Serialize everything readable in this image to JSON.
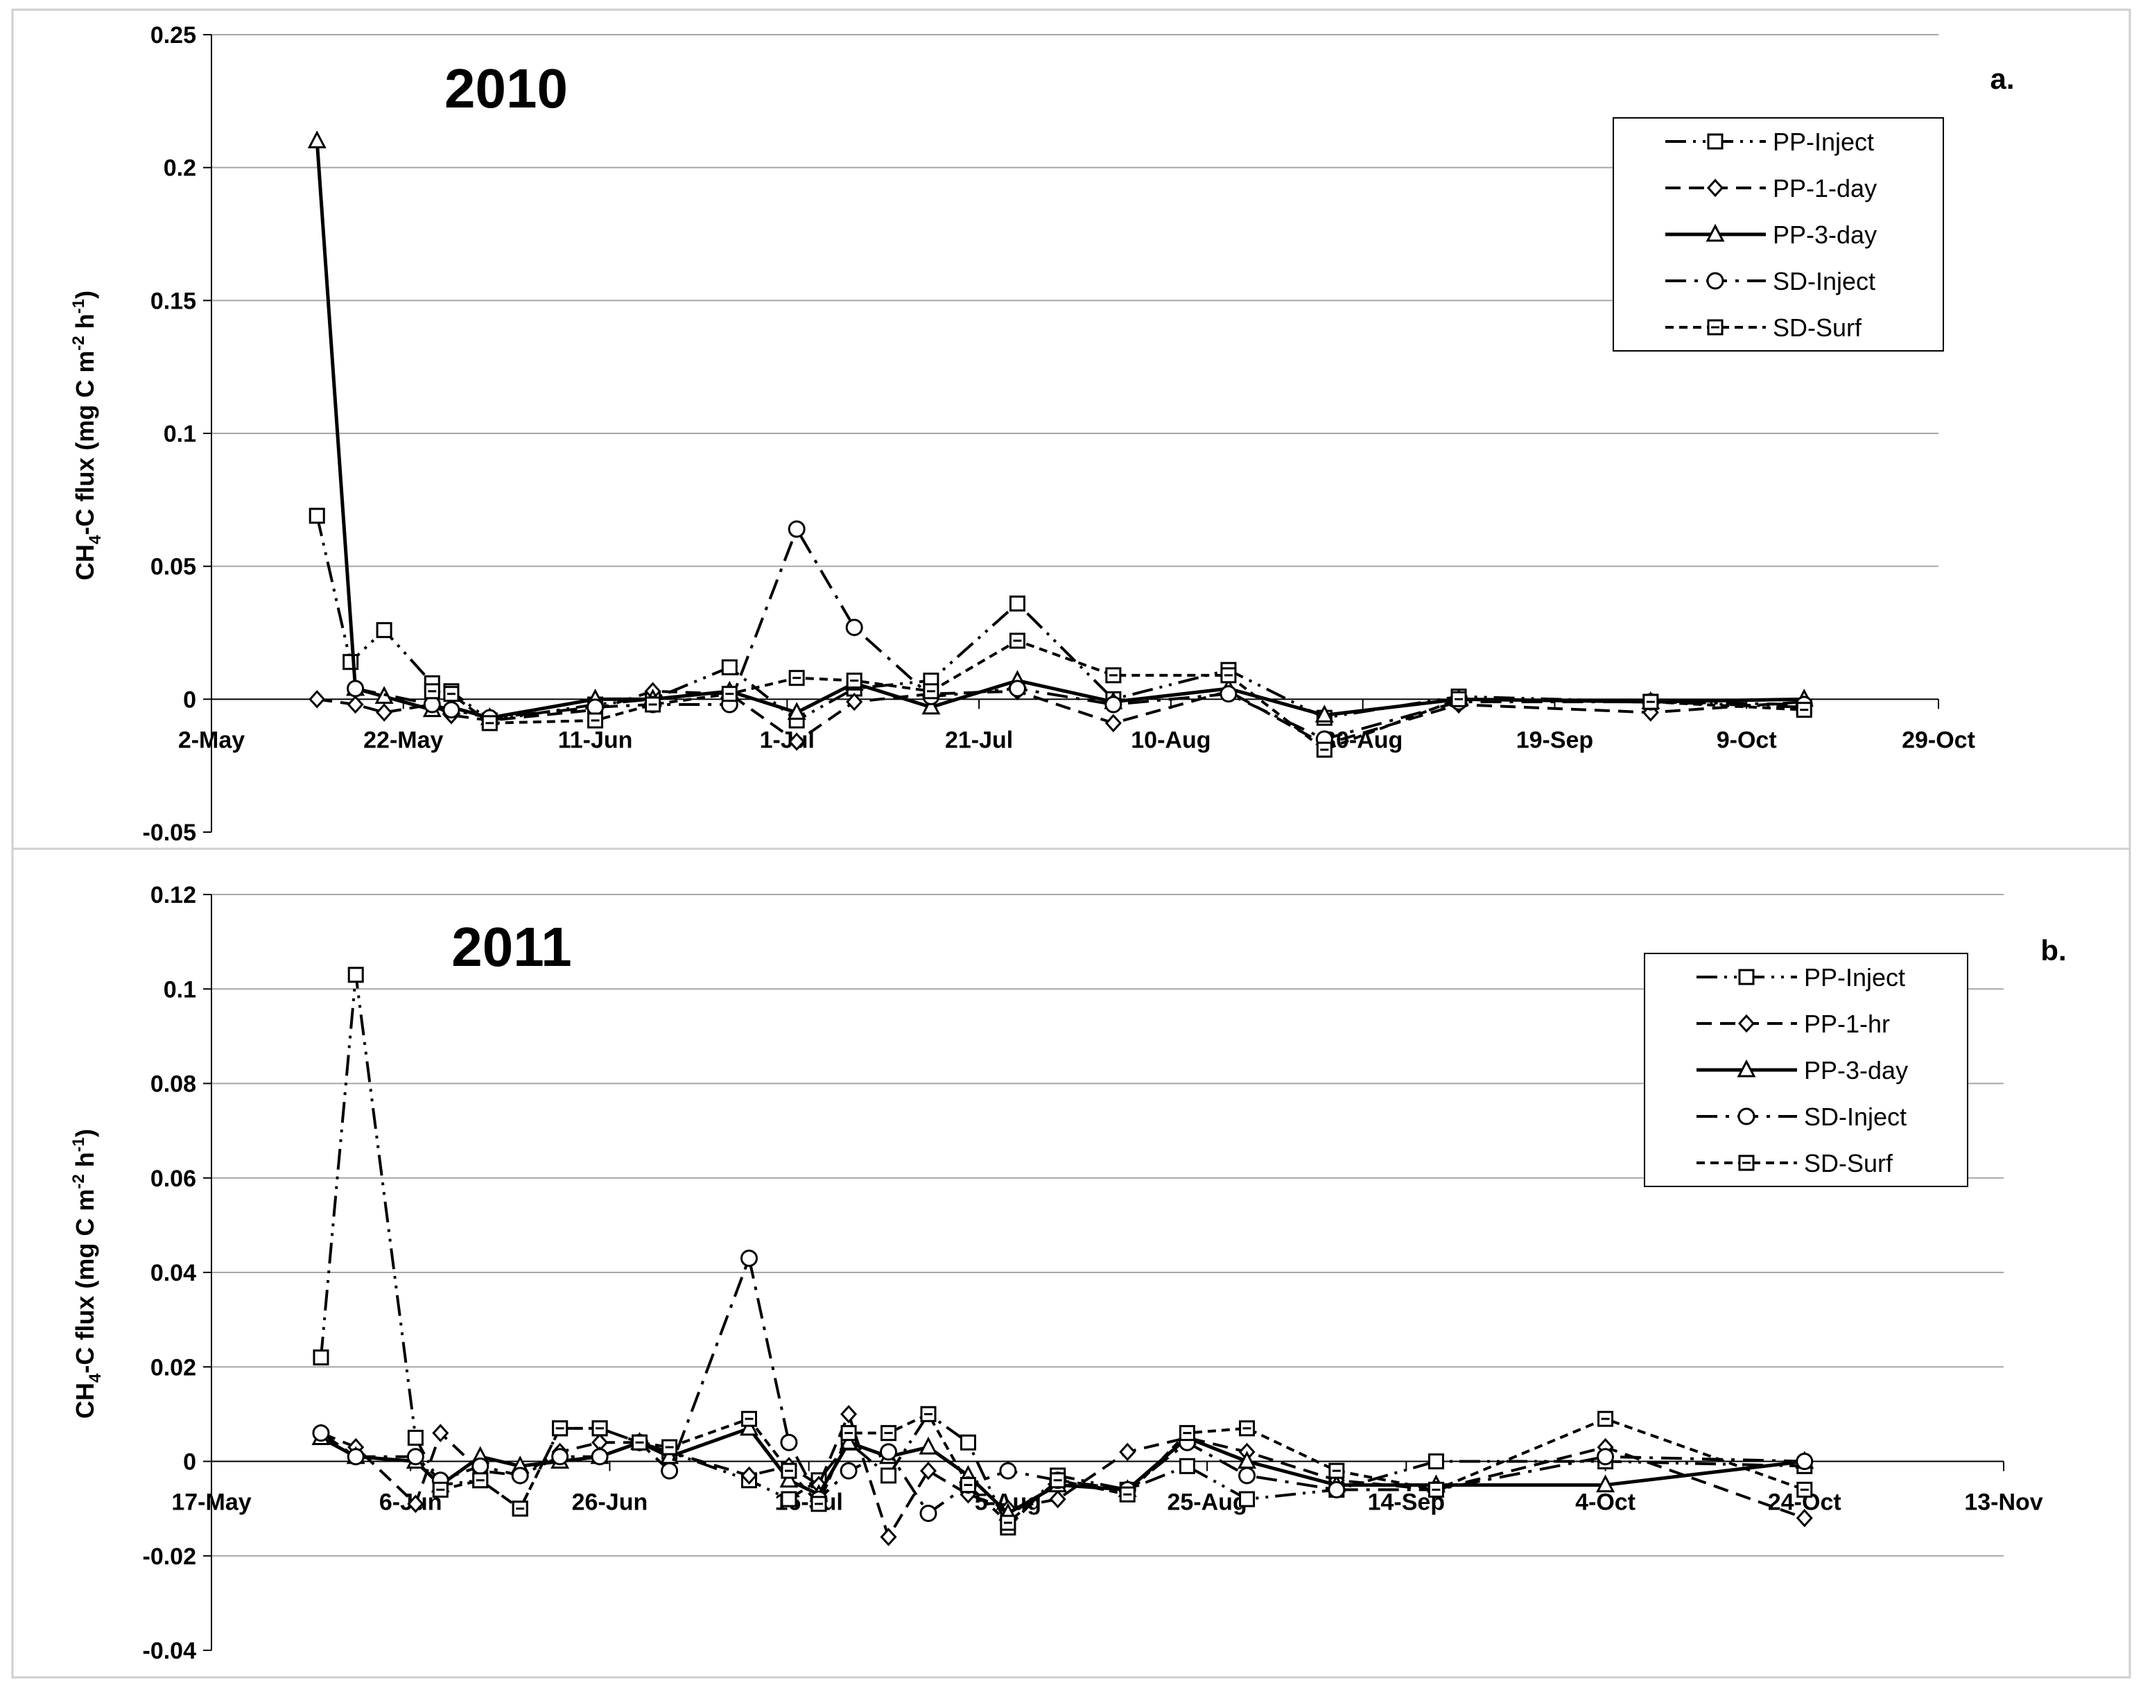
{
  "chart_data": [
    {
      "type": "line",
      "panel_label": "a.",
      "title": "2010",
      "ylabel": "CH4-C flux (mg C m-2 h-1)",
      "ylabel_parts": {
        "a": "CH",
        "b": "4",
        "c": "-C flux (mg C m",
        "d": "-2",
        "e": " h",
        "f": "-1",
        "g": ")"
      },
      "xlabel": "",
      "ylim": [
        -0.05,
        0.25
      ],
      "yticks": [
        -0.05,
        0,
        0.05,
        0.1,
        0.15,
        0.2,
        0.25
      ],
      "ytick_labels": [
        "-0.05",
        "0",
        "0.05",
        "0.1",
        "0.15",
        "0.2",
        "0.25"
      ],
      "xlim_days": [
        0,
        180
      ],
      "xticks": [
        {
          "label": "2-May",
          "day": 0
        },
        {
          "label": "22-May",
          "day": 20
        },
        {
          "label": "11-Jun",
          "day": 40
        },
        {
          "label": "1-Jul",
          "day": 60
        },
        {
          "label": "21-Jul",
          "day": 80
        },
        {
          "label": "10-Aug",
          "day": 100
        },
        {
          "label": "30-Aug",
          "day": 120
        },
        {
          "label": "19-Sep",
          "day": 140
        },
        {
          "label": "9-Oct",
          "day": 160
        },
        {
          "label": "29-Oct",
          "day": 180
        }
      ],
      "x_units": "days since 2-May-2010",
      "legend_position": "top-right",
      "series": [
        {
          "name": "PP-Inject",
          "marker": "square",
          "dash": "longdot",
          "x": [
            11,
            14.5,
            18,
            23,
            25,
            29,
            40,
            46,
            54,
            61,
            67,
            75,
            84,
            94,
            106,
            116,
            130,
            150,
            166
          ],
          "y": [
            0.069,
            0.014,
            0.026,
            0.006,
            0.003,
            -0.008,
            -0.002,
            0.0,
            0.012,
            -0.008,
            0.004,
            0.007,
            0.036,
            0.0,
            0.011,
            -0.007,
            0.001,
            -0.001,
            -0.003
          ]
        },
        {
          "name": "PP-1-day",
          "marker": "diamond",
          "dash": "dash",
          "x": [
            11,
            15,
            18,
            23,
            25,
            29,
            40,
            46,
            54,
            61,
            67,
            75,
            84,
            94,
            106,
            116,
            130,
            150,
            166
          ],
          "y": [
            0.0,
            -0.002,
            -0.005,
            -0.002,
            -0.006,
            -0.008,
            -0.004,
            0.003,
            0.002,
            -0.016,
            -0.001,
            0.002,
            0.003,
            -0.009,
            0.003,
            -0.017,
            -0.002,
            -0.005,
            -0.001
          ]
        },
        {
          "name": "PP-3-day",
          "marker": "triangle",
          "dash": "solid",
          "x": [
            11,
            15,
            18,
            23,
            25,
            29,
            40,
            46,
            54,
            61,
            67,
            75,
            84,
            94,
            106,
            116,
            130,
            150,
            166
          ],
          "y": [
            0.21,
            0.004,
            0.001,
            -0.004,
            -0.003,
            -0.007,
            0.0,
            0.0,
            0.003,
            -0.005,
            0.006,
            -0.003,
            0.007,
            -0.001,
            0.004,
            -0.006,
            0.0,
            -0.001,
            0.0
          ]
        },
        {
          "name": "SD-Inject",
          "marker": "circle",
          "dash": "dashdot",
          "x": [
            15,
            23,
            25,
            29,
            40,
            46,
            54,
            61,
            67,
            75,
            84,
            94,
            106,
            116,
            130,
            150,
            166
          ],
          "y": [
            0.004,
            -0.002,
            -0.004,
            -0.007,
            -0.003,
            -0.002,
            -0.002,
            0.064,
            0.027,
            0.001,
            0.004,
            -0.002,
            0.002,
            -0.015,
            -0.001,
            -0.001,
            -0.002
          ]
        },
        {
          "name": "SD-Surf",
          "marker": "square-dot",
          "dash": "shortdash",
          "x": [
            23,
            25,
            29,
            40,
            46,
            54,
            61,
            67,
            75,
            84,
            94,
            106,
            116,
            130,
            150,
            166
          ],
          "y": [
            0.003,
            0.002,
            -0.009,
            -0.008,
            -0.002,
            0.002,
            0.008,
            0.007,
            0.003,
            0.022,
            0.009,
            0.009,
            -0.019,
            0.0,
            -0.001,
            -0.004
          ]
        }
      ]
    },
    {
      "type": "line",
      "panel_label": "b.",
      "title": "2011",
      "ylabel": "CH4-C flux (mg C m-2 h-1)",
      "ylabel_parts": {
        "a": "CH",
        "b": "4",
        "c": "-C flux (mg C m",
        "d": "-2",
        "e": " h",
        "f": "-1",
        "g": ")"
      },
      "xlabel": "",
      "ylim": [
        -0.04,
        0.12
      ],
      "yticks": [
        -0.04,
        -0.02,
        0,
        0.02,
        0.04,
        0.06,
        0.08,
        0.1,
        0.12
      ],
      "ytick_labels": [
        "-0.04",
        "-0.02",
        "0",
        "0.02",
        "0.04",
        "0.06",
        "0.08",
        "0.1",
        "0.12"
      ],
      "xlim_days": [
        0,
        180
      ],
      "xticks": [
        {
          "label": "17-May",
          "day": 0
        },
        {
          "label": "6-Jun",
          "day": 20
        },
        {
          "label": "26-Jun",
          "day": 40
        },
        {
          "label": "16-Jul",
          "day": 60
        },
        {
          "label": "5-Aug",
          "day": 80
        },
        {
          "label": "25-Aug",
          "day": 100
        },
        {
          "label": "14-Sep",
          "day": 120
        },
        {
          "label": "4-Oct",
          "day": 140
        },
        {
          "label": "24-Oct",
          "day": 160
        },
        {
          "label": "13-Nov",
          "day": 180
        }
      ],
      "x_units": "days since 17-May-2011",
      "legend_position": "top-right",
      "series": [
        {
          "name": "PP-Inject",
          "marker": "square",
          "dash": "longdot",
          "x": [
            11,
            14.5,
            20.5,
            23,
            27,
            31,
            35,
            39,
            43,
            46,
            54,
            58,
            61,
            64,
            68,
            72,
            76,
            80,
            85,
            92,
            98,
            104,
            113,
            123,
            140,
            160
          ],
          "y": [
            0.022,
            0.103,
            0.005,
            -0.005,
            -0.004,
            -0.01,
            0.007,
            0.007,
            0.004,
            0.002,
            -0.004,
            -0.008,
            -0.004,
            0.004,
            -0.003,
            0.01,
            0.004,
            -0.014,
            -0.003,
            -0.006,
            -0.001,
            -0.008,
            -0.006,
            0.0,
            0.0,
            -0.001
          ]
        },
        {
          "name": "PP-1-hr",
          "marker": "diamond",
          "dash": "dash",
          "x": [
            11,
            14.5,
            20.5,
            23,
            27,
            31,
            35,
            39,
            43,
            46,
            54,
            58,
            61,
            64,
            68,
            72,
            76,
            80,
            85,
            92,
            98,
            104,
            113,
            123,
            140,
            160
          ],
          "y": [
            0.006,
            0.003,
            -0.009,
            0.006,
            -0.002,
            -0.003,
            0.002,
            0.004,
            0.004,
            0.002,
            -0.003,
            -0.001,
            -0.005,
            0.01,
            -0.016,
            -0.002,
            -0.007,
            -0.01,
            -0.008,
            0.002,
            0.005,
            0.002,
            -0.004,
            -0.006,
            0.003,
            -0.012
          ]
        },
        {
          "name": "PP-3-day",
          "marker": "triangle",
          "dash": "solid",
          "x": [
            11,
            14.5,
            20.5,
            23,
            27,
            31,
            35,
            39,
            43,
            46,
            54,
            58,
            61,
            64,
            68,
            72,
            76,
            80,
            85,
            92,
            98,
            104,
            113,
            123,
            140,
            160
          ],
          "y": [
            0.005,
            0.001,
            0.0,
            -0.005,
            0.001,
            -0.001,
            0.0,
            0.001,
            0.004,
            0.001,
            0.007,
            -0.004,
            -0.007,
            0.004,
            0.001,
            0.003,
            -0.003,
            -0.011,
            -0.005,
            -0.006,
            0.005,
            0.0,
            -0.005,
            -0.005,
            -0.005,
            0.0
          ]
        },
        {
          "name": "SD-Inject",
          "marker": "circle",
          "dash": "dashdot",
          "x": [
            11,
            14.5,
            20.5,
            23,
            27,
            31,
            35,
            39,
            43,
            46,
            54,
            58,
            61,
            64,
            68,
            72,
            76,
            80,
            85,
            92,
            98,
            104,
            113,
            123,
            140,
            160
          ],
          "y": [
            0.006,
            0.001,
            0.001,
            -0.004,
            -0.001,
            -0.003,
            0.001,
            0.001,
            0.004,
            -0.002,
            0.043,
            0.004,
            -0.008,
            -0.002,
            0.002,
            -0.011,
            -0.005,
            -0.002,
            -0.004,
            -0.006,
            0.004,
            -0.003,
            -0.006,
            -0.006,
            0.001,
            0.0
          ]
        },
        {
          "name": "SD-Surf",
          "marker": "square-dot",
          "dash": "shortdash",
          "x": [
            23,
            27,
            31,
            35,
            39,
            43,
            46,
            54,
            58,
            61,
            64,
            68,
            72,
            76,
            80,
            85,
            92,
            98,
            104,
            113,
            123,
            140,
            160
          ],
          "y": [
            -0.006,
            -0.004,
            -0.01,
            0.007,
            0.007,
            0.004,
            0.003,
            0.009,
            -0.002,
            -0.009,
            0.006,
            0.006,
            0.01,
            -0.005,
            -0.013,
            -0.004,
            -0.007,
            0.006,
            0.007,
            -0.002,
            -0.006,
            0.009,
            -0.006
          ]
        }
      ]
    }
  ]
}
